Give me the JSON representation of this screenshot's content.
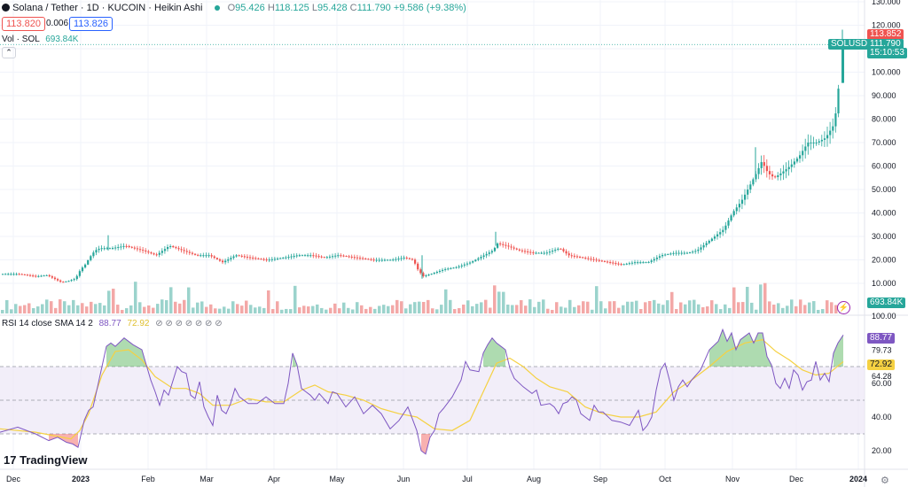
{
  "header": {
    "symbol_title": "Solana / Tether · 1D · KUCOIN · Heikin Ashi",
    "ohlc": {
      "o_label": "O",
      "o_value": "95.426",
      "h_label": "H",
      "h_value": "118.125",
      "l_label": "L",
      "l_value": "95.428",
      "c_label": "C",
      "c_value": "111.790",
      "change": "+9.586 (+9.38%)"
    },
    "bid": "113.820",
    "spread": "0.006",
    "ask": "113.826",
    "vol_label": "Vol · SOL",
    "vol_value": "693.84K",
    "collapse_icon": "chevron-up-icon"
  },
  "price_axis": {
    "ticks": [
      "130.000",
      "120.000",
      "110.000",
      "100.000",
      "90.000",
      "80.000",
      "70.000",
      "60.000",
      "50.000",
      "40.000",
      "30.000",
      "20.000",
      "10.000"
    ],
    "tag_high": "113.852",
    "tag_symbol": "SOLUSDT",
    "tag_last": "111.790",
    "tag_countdown": "15:10:53",
    "tag_volume": "693.84K"
  },
  "rsi_panel": {
    "legend": "RSI 14 close SMA 14 2",
    "rsi_value": "88.77",
    "sma_value": "72.92",
    "extra_icons": "⊘ ⊘ ⊘ ⊘ ⊘ ⊘ ⊘",
    "ticks": [
      "100.00",
      "79.73",
      "64.28",
      "60.00",
      "40.00",
      "20.00"
    ],
    "tag_rsi": "88.77",
    "tag_sma": "72.92"
  },
  "time_axis": {
    "labels": [
      "Dec",
      "2023",
      "Feb",
      "Mar",
      "Apr",
      "May",
      "Jun",
      "Jul",
      "Aug",
      "Sep",
      "Oct",
      "Nov",
      "Dec",
      "2024"
    ]
  },
  "branding": {
    "logo_text": "TradingView"
  },
  "colors": {
    "up": "#26a69a",
    "down": "#ef5350",
    "rsi_line": "#7e57c2",
    "sma_line": "#f5d142",
    "band_fill": "#ede7f6",
    "last_price": "#26a69a",
    "high_tag": "#ef5350"
  },
  "chart_data": [
    {
      "type": "candlestick",
      "title": "Solana / Tether · 1D · KUCOIN · Heikin Ashi",
      "ylim": [
        0,
        130
      ],
      "x_labels": [
        "Dec",
        "2023",
        "Feb",
        "Mar",
        "Apr",
        "May",
        "Jun",
        "Jul",
        "Aug",
        "Sep",
        "Oct",
        "Nov",
        "Dec",
        "2024"
      ],
      "close_path": [
        [
          0,
          14
        ],
        [
          20,
          14
        ],
        [
          40,
          13
        ],
        [
          52,
          13.5
        ],
        [
          60,
          12
        ],
        [
          68,
          10.5
        ],
        [
          76,
          11
        ],
        [
          84,
          12
        ],
        [
          90,
          16
        ],
        [
          95,
          18
        ],
        [
          100,
          21
        ],
        [
          106,
          24
        ],
        [
          112,
          25
        ],
        [
          125,
          25
        ],
        [
          140,
          26
        ],
        [
          160,
          24
        ],
        [
          175,
          22
        ],
        [
          190,
          26
        ],
        [
          205,
          24
        ],
        [
          220,
          22
        ],
        [
          235,
          22
        ],
        [
          250,
          19
        ],
        [
          265,
          22
        ],
        [
          280,
          21
        ],
        [
          300,
          20
        ],
        [
          320,
          21
        ],
        [
          335,
          22
        ],
        [
          350,
          22
        ],
        [
          365,
          21
        ],
        [
          380,
          22
        ],
        [
          400,
          21
        ],
        [
          420,
          20
        ],
        [
          440,
          20
        ],
        [
          455,
          21
        ],
        [
          465,
          20
        ],
        [
          470,
          16
        ],
        [
          476,
          13
        ],
        [
          485,
          14
        ],
        [
          500,
          16
        ],
        [
          515,
          17
        ],
        [
          530,
          19
        ],
        [
          545,
          22
        ],
        [
          555,
          24
        ],
        [
          560,
          27
        ],
        [
          570,
          26
        ],
        [
          585,
          24
        ],
        [
          600,
          23
        ],
        [
          615,
          23
        ],
        [
          630,
          25
        ],
        [
          640,
          22
        ],
        [
          655,
          21
        ],
        [
          670,
          20
        ],
        [
          685,
          19
        ],
        [
          700,
          18
        ],
        [
          715,
          19
        ],
        [
          730,
          19
        ],
        [
          745,
          22
        ],
        [
          760,
          23
        ],
        [
          775,
          23
        ],
        [
          785,
          24
        ],
        [
          795,
          27
        ],
        [
          805,
          30
        ],
        [
          815,
          33
        ],
        [
          825,
          40
        ],
        [
          835,
          45
        ],
        [
          845,
          52
        ],
        [
          852,
          57
        ],
        [
          858,
          62
        ],
        [
          865,
          57
        ],
        [
          872,
          55
        ],
        [
          880,
          57
        ],
        [
          890,
          60
        ],
        [
          900,
          64
        ],
        [
          910,
          70
        ],
        [
          920,
          70
        ],
        [
          930,
          72
        ],
        [
          940,
          78
        ],
        [
          945,
          95
        ],
        [
          952,
          112
        ]
      ],
      "last_close": 111.79,
      "last_high": 118.125,
      "last_low": 95.428,
      "last_open": 95.426
    },
    {
      "type": "bar",
      "title": "Vol · SOL",
      "last_value": "693.84K"
    },
    {
      "type": "line",
      "title": "RSI 14 close SMA 14 2",
      "ylim": [
        15,
        100
      ],
      "bands": {
        "upper": 70,
        "middle": 50,
        "lower": 30
      },
      "series": [
        {
          "name": "RSI",
          "x": [
            0,
            20,
            40,
            55,
            65,
            75,
            82,
            88,
            95,
            100,
            105,
            110,
            115,
            120,
            125,
            130,
            140,
            150,
            160,
            165,
            170,
            175,
            180,
            185,
            190,
            200,
            205,
            210,
            215,
            220,
            225,
            230,
            235,
            240,
            245,
            250,
            255,
            260,
            265,
            270,
            280,
            290,
            300,
            310,
            320,
            325,
            330,
            335,
            340,
            345,
            350,
            355,
            360,
            370,
            375,
            380,
            390,
            400,
            410,
            420,
            430,
            440,
            450,
            460,
            470,
            475,
            480,
            485,
            490,
            495,
            500,
            510,
            520,
            525,
            530,
            540,
            545,
            550,
            555,
            560,
            565,
            570,
            575,
            580,
            590,
            600,
            605,
            610,
            620,
            625,
            630,
            635,
            640,
            645,
            650,
            655,
            660,
            665,
            670,
            675,
            680,
            690,
            700,
            710,
            720,
            725,
            730,
            735,
            740,
            745,
            750,
            755,
            760,
            765,
            770,
            775,
            780,
            790,
            800,
            810,
            815,
            820,
            825,
            830,
            835,
            840,
            845,
            850,
            855,
            860,
            865,
            870,
            875,
            880,
            885,
            890,
            895,
            900,
            905,
            910,
            915,
            920,
            925,
            930,
            935,
            940,
            945,
            951
          ],
          "values": [
            31,
            34,
            30,
            26,
            28,
            25,
            24,
            22,
            38,
            44,
            46,
            58,
            70,
            82,
            84,
            82,
            87,
            83,
            80,
            71,
            62,
            55,
            47,
            56,
            53,
            70,
            67,
            66,
            53,
            51,
            61,
            46,
            40,
            35,
            53,
            44,
            42,
            48,
            57,
            52,
            48,
            48,
            52,
            48,
            48,
            60,
            78,
            71,
            57,
            55,
            53,
            50,
            54,
            48,
            55,
            54,
            46,
            52,
            42,
            47,
            42,
            33,
            38,
            46,
            32,
            20,
            18,
            28,
            32,
            42,
            45,
            52,
            62,
            73,
            68,
            67,
            78,
            83,
            87,
            84,
            82,
            80,
            69,
            63,
            58,
            54,
            56,
            47,
            48,
            46,
            42,
            48,
            49,
            52,
            50,
            42,
            40,
            38,
            47,
            43,
            43,
            38,
            37,
            35,
            44,
            32,
            35,
            40,
            56,
            68,
            72,
            62,
            50,
            58,
            62,
            58,
            62,
            68,
            80,
            85,
            92,
            85,
            90,
            80,
            86,
            88,
            90,
            84,
            90,
            90,
            76,
            71,
            60,
            57,
            63,
            57,
            68,
            65,
            56,
            61,
            62,
            73,
            62,
            66,
            61,
            78,
            84,
            88.77
          ]
        },
        {
          "name": "SMA",
          "x": [
            0,
            40,
            60,
            80,
            90,
            100,
            115,
            130,
            145,
            160,
            175,
            195,
            210,
            225,
            240,
            260,
            280,
            300,
            320,
            340,
            355,
            370,
            390,
            410,
            430,
            450,
            470,
            490,
            510,
            530,
            545,
            560,
            575,
            590,
            605,
            620,
            640,
            660,
            680,
            700,
            720,
            740,
            760,
            780,
            800,
            820,
            840,
            860,
            875,
            890,
            905,
            920,
            935,
            951
          ],
          "values": [
            33,
            31,
            29,
            27,
            32,
            42,
            65,
            79,
            80,
            74,
            64,
            57,
            57,
            54,
            47,
            47,
            51,
            49,
            49,
            56,
            59,
            55,
            53,
            50,
            45,
            42,
            40,
            33,
            32,
            38,
            55,
            72,
            75,
            70,
            63,
            58,
            55,
            46,
            42,
            40,
            40,
            43,
            55,
            62,
            70,
            79,
            84,
            86,
            79,
            74,
            68,
            65,
            66,
            72.92
          ]
        }
      ],
      "last_rsi": 88.77,
      "last_sma": 72.92
    }
  ]
}
